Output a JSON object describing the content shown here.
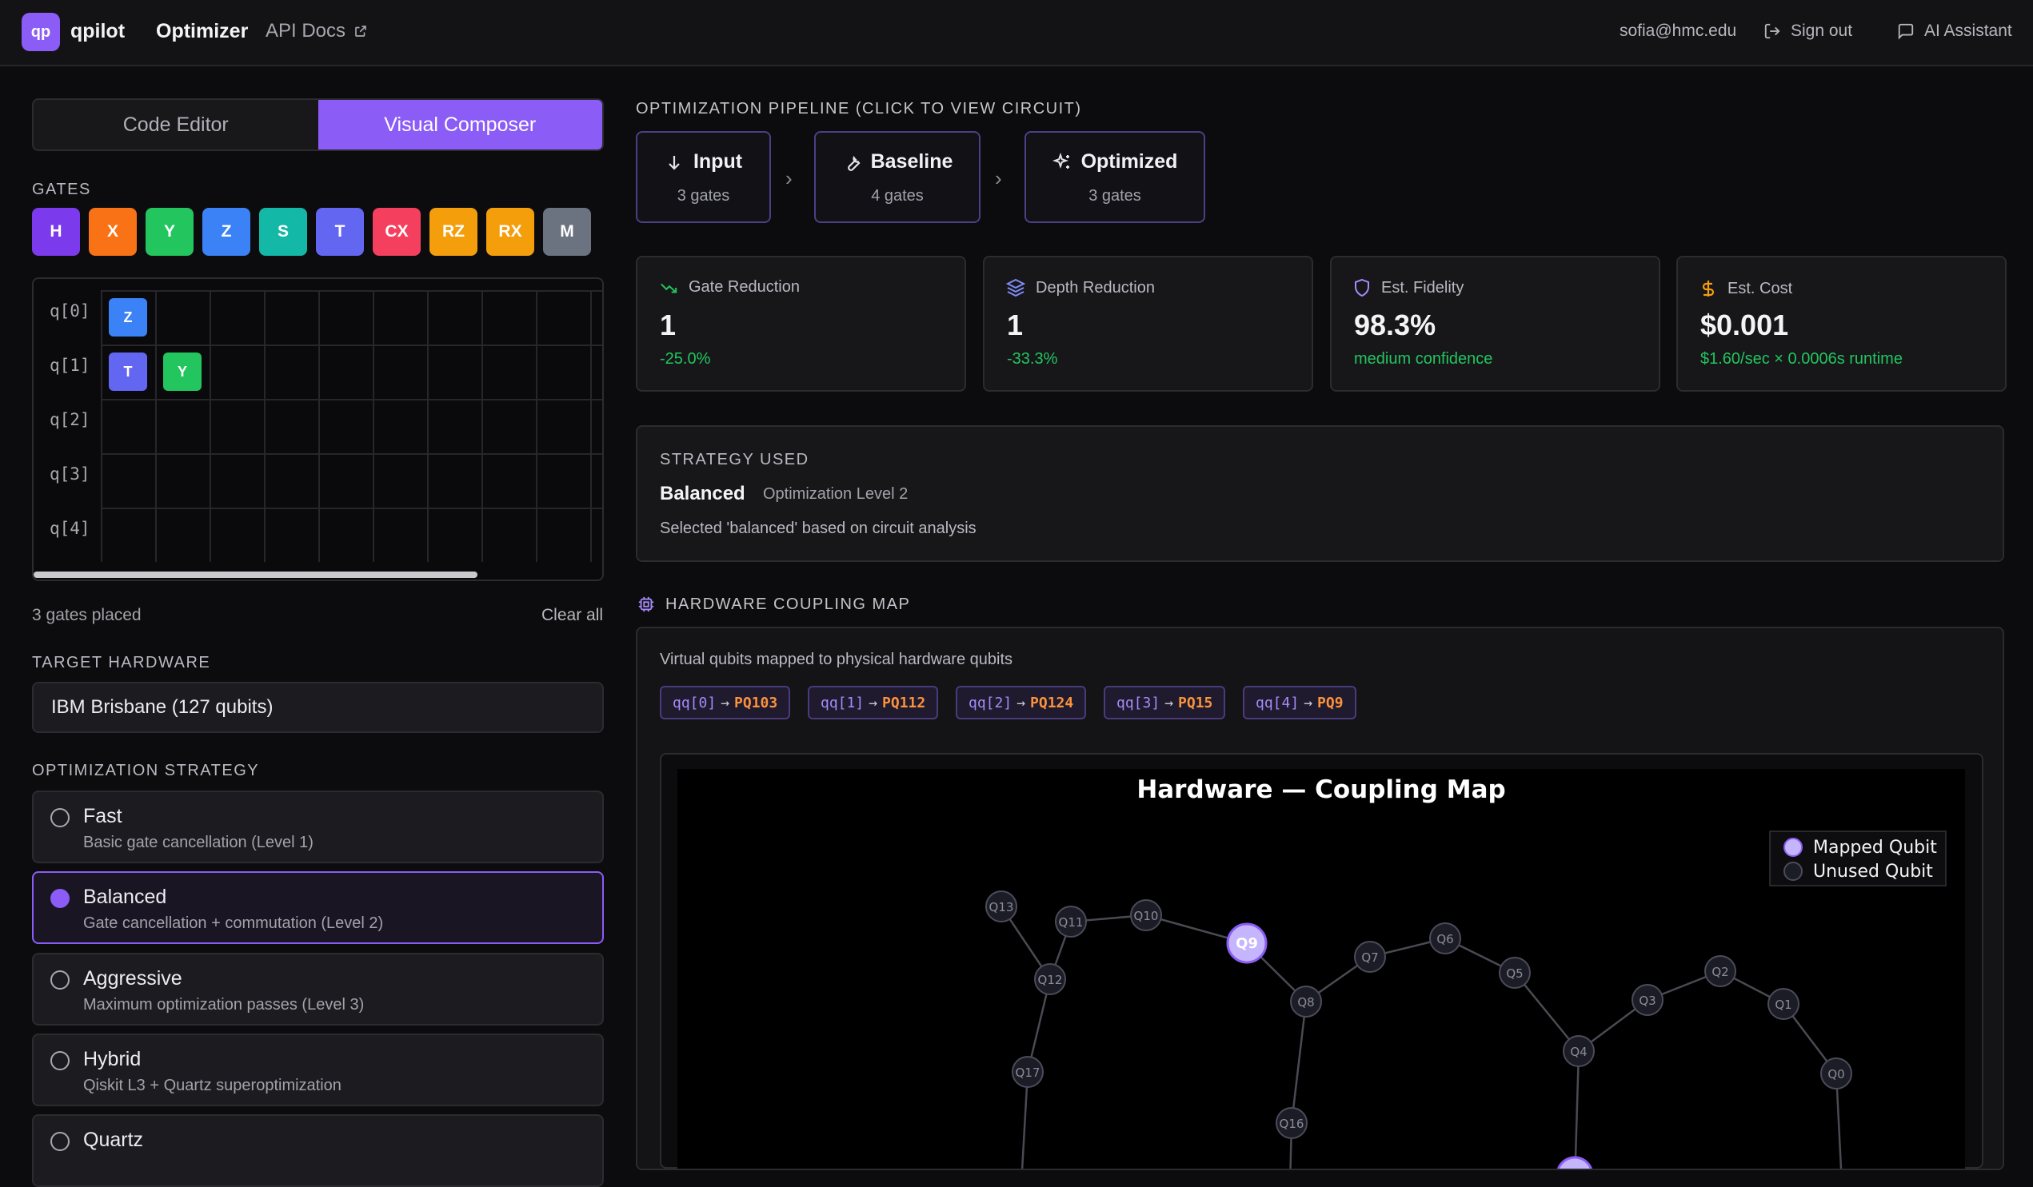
{
  "header": {
    "logo_text": "qp",
    "brand": "qpilot",
    "nav_optimizer": "Optimizer",
    "nav_api_docs": "API Docs",
    "user_email": "sofia@hmc.edu",
    "sign_out": "Sign out",
    "ai_assistant": "AI Assistant"
  },
  "editor_tabs": {
    "code": "Code Editor",
    "visual": "Visual Composer"
  },
  "gates_label": "GATES",
  "gates": [
    {
      "label": "H",
      "color": "#7c3aed"
    },
    {
      "label": "X",
      "color": "#f97316"
    },
    {
      "label": "Y",
      "color": "#22c55e"
    },
    {
      "label": "Z",
      "color": "#3b82f6"
    },
    {
      "label": "S",
      "color": "#14b8a6"
    },
    {
      "label": "T",
      "color": "#6366f1"
    },
    {
      "label": "CX",
      "color": "#f43f5e"
    },
    {
      "label": "RZ",
      "color": "#f59e0b"
    },
    {
      "label": "RX",
      "color": "#f59e0b"
    },
    {
      "label": "M",
      "color": "#6b7280"
    }
  ],
  "qubits": [
    "q[0]",
    "q[1]",
    "q[2]",
    "q[3]",
    "q[4]"
  ],
  "placed_gates": [
    {
      "label": "Z",
      "qubit": 0,
      "step": 0,
      "color": "#3b82f6"
    },
    {
      "label": "T",
      "qubit": 1,
      "step": 0,
      "color": "#6366f1"
    },
    {
      "label": "Y",
      "qubit": 1,
      "step": 1,
      "color": "#22c55e"
    }
  ],
  "gates_placed_text": "3 gates placed",
  "clear_all": "Clear all",
  "target_hardware_label": "TARGET HARDWARE",
  "target_hardware_value": "IBM Brisbane (127 qubits)",
  "optimization_strategy_label": "OPTIMIZATION STRATEGY",
  "strategies": [
    {
      "title": "Fast",
      "desc": "Basic gate cancellation (Level 1)",
      "selected": false
    },
    {
      "title": "Balanced",
      "desc": "Gate cancellation + commutation (Level 2)",
      "selected": true
    },
    {
      "title": "Aggressive",
      "desc": "Maximum optimization passes (Level 3)",
      "selected": false
    },
    {
      "title": "Hybrid",
      "desc": "Qiskit L3 + Quartz superoptimization",
      "selected": false
    },
    {
      "title": "Quartz",
      "desc": "",
      "selected": false
    }
  ],
  "pipeline_label": "OPTIMIZATION PIPELINE (CLICK TO VIEW CIRCUIT)",
  "pipeline": [
    {
      "title": "Input",
      "sub": "3 gates",
      "icon": "arrow-down-icon"
    },
    {
      "title": "Baseline",
      "sub": "4 gates",
      "icon": "wrench-icon"
    },
    {
      "title": "Optimized",
      "sub": "3 gates",
      "icon": "sparkles-icon"
    }
  ],
  "metrics": [
    {
      "label": "Gate Reduction",
      "value": "1",
      "sub": "-25.0%",
      "icon": "trending-down-icon"
    },
    {
      "label": "Depth Reduction",
      "value": "1",
      "sub": "-33.3%",
      "icon": "layers-icon"
    },
    {
      "label": "Est. Fidelity",
      "value": "98.3%",
      "sub": "medium confidence",
      "icon": "shield-icon"
    },
    {
      "label": "Est. Cost",
      "value": "$0.001",
      "sub": "$1.60/sec × 0.0006s runtime",
      "icon": "dollar-icon"
    }
  ],
  "strategy_used": {
    "label": "STRATEGY USED",
    "name": "Balanced",
    "level": "Optimization Level 2",
    "note": "Selected 'balanced' based on circuit analysis"
  },
  "coupling": {
    "label": "HARDWARE COUPLING MAP",
    "desc": "Virtual qubits mapped to physical hardware qubits",
    "mappings": [
      {
        "v": "qq[0]",
        "p": "PQ103"
      },
      {
        "v": "qq[1]",
        "p": "PQ112"
      },
      {
        "v": "qq[2]",
        "p": "PQ124"
      },
      {
        "v": "qq[3]",
        "p": "PQ15"
      },
      {
        "v": "qq[4]",
        "p": "PQ9"
      }
    ],
    "chart_title": "Hardware — Coupling Map",
    "legend_mapped": "Mapped Qubit",
    "legend_unused": "Unused Qubit",
    "nodes": [
      {
        "id": "Q13",
        "mapped": false
      },
      {
        "id": "Q11",
        "mapped": false
      },
      {
        "id": "Q10",
        "mapped": false
      },
      {
        "id": "Q9",
        "mapped": true
      },
      {
        "id": "Q12",
        "mapped": false
      },
      {
        "id": "Q7",
        "mapped": false
      },
      {
        "id": "Q6",
        "mapped": false
      },
      {
        "id": "Q5",
        "mapped": false
      },
      {
        "id": "Q8",
        "mapped": false
      },
      {
        "id": "Q3",
        "mapped": false
      },
      {
        "id": "Q2",
        "mapped": false
      },
      {
        "id": "Q1",
        "mapped": false
      },
      {
        "id": "Q17",
        "mapped": false
      },
      {
        "id": "Q4",
        "mapped": false
      },
      {
        "id": "Q0",
        "mapped": false
      },
      {
        "id": "Q16",
        "mapped": false
      }
    ],
    "edges": [
      [
        "Q13",
        "Q12"
      ],
      [
        "Q12",
        "Q11"
      ],
      [
        "Q11",
        "Q10"
      ],
      [
        "Q10",
        "Q9"
      ],
      [
        "Q9",
        "Q8"
      ],
      [
        "Q8",
        "Q7"
      ],
      [
        "Q7",
        "Q6"
      ],
      [
        "Q6",
        "Q5"
      ],
      [
        "Q5",
        "Q4"
      ],
      [
        "Q4",
        "Q3"
      ],
      [
        "Q3",
        "Q2"
      ],
      [
        "Q2",
        "Q1"
      ],
      [
        "Q1",
        "Q0"
      ],
      [
        "Q12",
        "Q17"
      ],
      [
        "Q8",
        "Q16"
      ]
    ]
  }
}
